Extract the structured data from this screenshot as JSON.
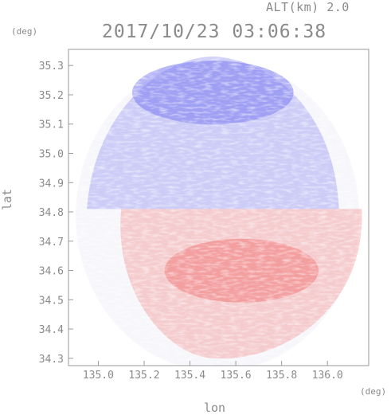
{
  "header": {
    "altitude_label": "ALT(km) 2.0",
    "timestamp": "2017/10/23 03:06:38"
  },
  "chart_data": {
    "type": "heatmap",
    "title": "2017/10/23 03:06:38",
    "subtitle": "ALT(km) 2.0",
    "xlabel": "lon",
    "ylabel": "lat",
    "x_unit": "(deg)",
    "y_unit": "(deg)",
    "xlim": [
      134.87,
      136.18
    ],
    "ylim": [
      34.275,
      35.355
    ],
    "x_ticks": [
      "135.0",
      "135.2",
      "135.4",
      "135.6",
      "135.8",
      "136.0"
    ],
    "y_ticks": [
      "34.3",
      "34.4",
      "34.5",
      "34.6",
      "34.7",
      "34.8",
      "34.9",
      "35.0",
      "35.1",
      "35.2",
      "35.3"
    ],
    "radar_center": {
      "lon": 135.52,
      "lat": 34.81
    },
    "colors": {
      "toward": "#f07a7a",
      "away": "#7a7af0",
      "axis": "#9a9a9a"
    },
    "grid": false,
    "legend": "none",
    "regions": [
      {
        "name": "north",
        "polarity": "away",
        "lon_range": [
          134.95,
          136.05
        ],
        "lat_range": [
          34.81,
          35.33
        ]
      },
      {
        "name": "south",
        "polarity": "toward",
        "lon_range": [
          135.1,
          136.15
        ],
        "lat_range": [
          34.3,
          34.81
        ]
      }
    ]
  }
}
